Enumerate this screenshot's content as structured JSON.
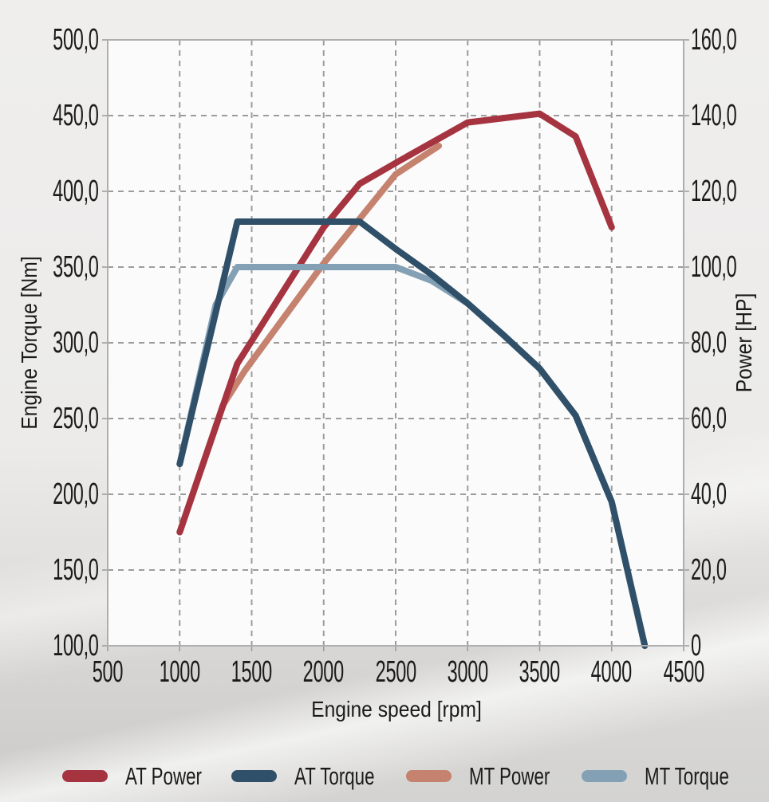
{
  "chart_data": {
    "type": "line",
    "title": "",
    "xlabel": "Engine speed [rpm]",
    "ylabel_left": "Engine Torque [Nm]",
    "ylabel_right": "Power [HP]",
    "x_range": [
      500,
      4500
    ],
    "torque_range": [
      100,
      500
    ],
    "power_range": [
      0,
      160
    ],
    "grid": {
      "on": true,
      "color": "#9c9c9c",
      "dash": "7 6"
    },
    "axis_border_color": "#aeaeae",
    "x_ticks": [
      {
        "label": "500",
        "v": 500
      },
      {
        "label": "1000",
        "v": 1000
      },
      {
        "label": "1500",
        "v": 1500
      },
      {
        "label": "2000",
        "v": 2000
      },
      {
        "label": "2500",
        "v": 2500
      },
      {
        "label": "3000",
        "v": 3000
      },
      {
        "label": "3500",
        "v": 3500
      },
      {
        "label": "4000",
        "v": 4000
      },
      {
        "label": "4500",
        "v": 4500
      }
    ],
    "left_ticks": [
      {
        "label": "500,0",
        "v": 500
      },
      {
        "label": "450,0",
        "v": 450
      },
      {
        "label": "400,0",
        "v": 400
      },
      {
        "label": "350,0",
        "v": 350
      },
      {
        "label": "300,0",
        "v": 300
      },
      {
        "label": "250,0",
        "v": 250
      },
      {
        "label": "200,0",
        "v": 200
      },
      {
        "label": "150,0",
        "v": 150
      },
      {
        "label": "100,0",
        "v": 100
      }
    ],
    "right_ticks": [
      {
        "label": "160,0",
        "v": 160
      },
      {
        "label": "140,0",
        "v": 140
      },
      {
        "label": "120,0",
        "v": 120
      },
      {
        "label": "100,0",
        "v": 100
      },
      {
        "label": "80,0",
        "v": 80
      },
      {
        "label": "60,0",
        "v": 60
      },
      {
        "label": "40,0",
        "v": 40
      },
      {
        "label": "20,0",
        "v": 20
      },
      {
        "label": "0",
        "v": 0
      }
    ],
    "legend_position": "bottom",
    "series": [
      {
        "name": "AT Power",
        "axis": "power",
        "unit": "HP",
        "color": "#a53440",
        "points": [
          [
            1000,
            30
          ],
          [
            1400,
            74.5
          ],
          [
            2000,
            110.5
          ],
          [
            2250,
            122
          ],
          [
            2500,
            127.5
          ],
          [
            3000,
            138.2
          ],
          [
            3500,
            140.5
          ],
          [
            3750,
            134.5
          ],
          [
            4000,
            110.5
          ]
        ]
      },
      {
        "name": "AT Torque",
        "axis": "torque",
        "unit": "Nm",
        "color": "#2f5068",
        "points": [
          [
            1000,
            220
          ],
          [
            1400,
            380
          ],
          [
            2250,
            380
          ],
          [
            2500,
            362
          ],
          [
            2750,
            345
          ],
          [
            3000,
            326
          ],
          [
            3250,
            305
          ],
          [
            3500,
            283
          ],
          [
            3750,
            252
          ],
          [
            4000,
            195
          ],
          [
            4230,
            100
          ]
        ]
      },
      {
        "name": "MT Power",
        "axis": "power",
        "unit": "HP",
        "color": "#c5826e",
        "points": [
          [
            1000,
            30
          ],
          [
            1300,
            63.5
          ],
          [
            1450,
            72.5
          ],
          [
            2000,
            101
          ],
          [
            2500,
            124.5
          ],
          [
            2800,
            132
          ]
        ]
      },
      {
        "name": "MT Torque",
        "axis": "torque",
        "unit": "Nm",
        "color": "#84a0b4",
        "points": [
          [
            1000,
            220
          ],
          [
            1250,
            325
          ],
          [
            1400,
            350
          ],
          [
            2500,
            350
          ],
          [
            2750,
            341
          ],
          [
            3000,
            326
          ],
          [
            3250,
            305
          ],
          [
            3500,
            283
          ],
          [
            3750,
            252
          ],
          [
            4000,
            195
          ],
          [
            4230,
            100
          ]
        ]
      }
    ]
  }
}
